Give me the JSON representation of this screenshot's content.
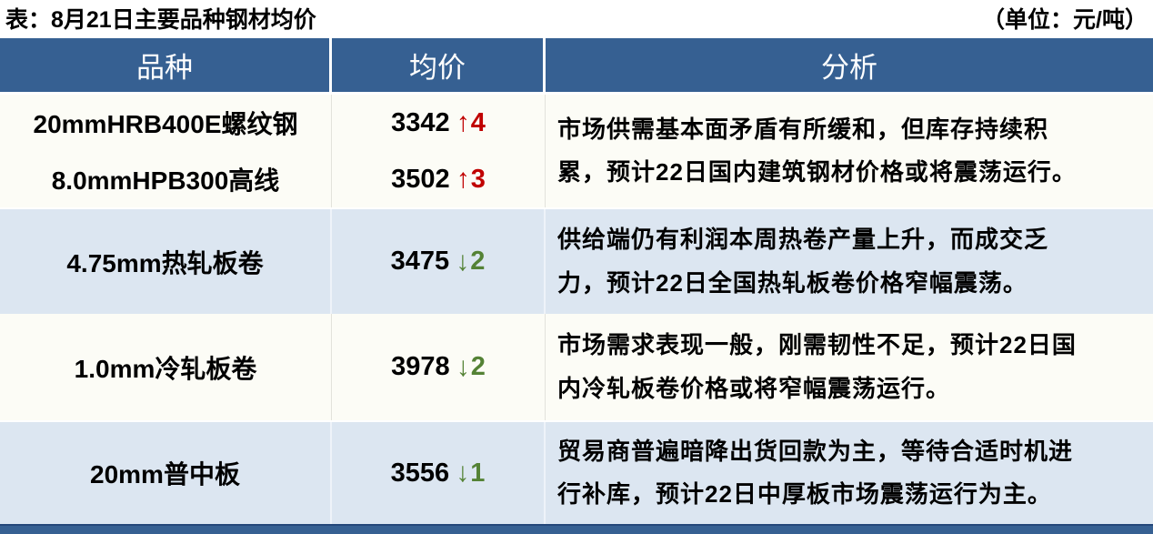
{
  "title": "表：8月21日主要品种钢材均价",
  "unit_label": "（单位：元/吨）",
  "table": {
    "headers": [
      "品种",
      "均价",
      "分析"
    ],
    "groups": [
      {
        "rows": [
          {
            "variety": "20mmHRB400E螺纹钢",
            "price": "3342",
            "arrow": "↑",
            "change": "4",
            "direction": "up"
          },
          {
            "variety": "8.0mmHPB300高线",
            "price": "3502",
            "arrow": "↑",
            "change": "3",
            "direction": "up"
          }
        ],
        "analysis_lines": [
          "市场供需基本面矛盾有所缓和，但库存持续积",
          "累，预计22日国内建筑钢材价格或将震荡运行。"
        ]
      },
      {
        "rows": [
          {
            "variety": "4.75mm热轧板卷",
            "price": "3475",
            "arrow": "↓",
            "change": "2",
            "direction": "down"
          }
        ],
        "analysis_lines": [
          "供给端仍有利润本周热卷产量上升，而成交乏",
          "力，预计22日全国热轧板卷价格窄幅震荡。"
        ]
      },
      {
        "rows": [
          {
            "variety": "1.0mm冷轧板卷",
            "price": "3978",
            "arrow": "↓",
            "change": "2",
            "direction": "down"
          }
        ],
        "analysis_lines": [
          "市场需求表现一般，刚需韧性不足，预计22日国",
          "内冷轧板卷价格或将窄幅震荡运行。"
        ]
      },
      {
        "rows": [
          {
            "variety": "20mm普中板",
            "price": "3556",
            "arrow": "↓",
            "change": "1",
            "direction": "down"
          }
        ],
        "analysis_lines": [
          "贸易商普遍暗降出货回款为主，等待合适时机进",
          "行补库，预计22日中厚板市场震荡运行为主。"
        ]
      }
    ]
  },
  "colors": {
    "header_bg": "#366092",
    "header_text": "#ffffff",
    "alt_row_bg": "#dce6f1",
    "white_row_bg": "#fcfcf6",
    "up": "#c00000",
    "down": "#548235",
    "bottom_bar": "#366092",
    "body_text": "#000000"
  }
}
